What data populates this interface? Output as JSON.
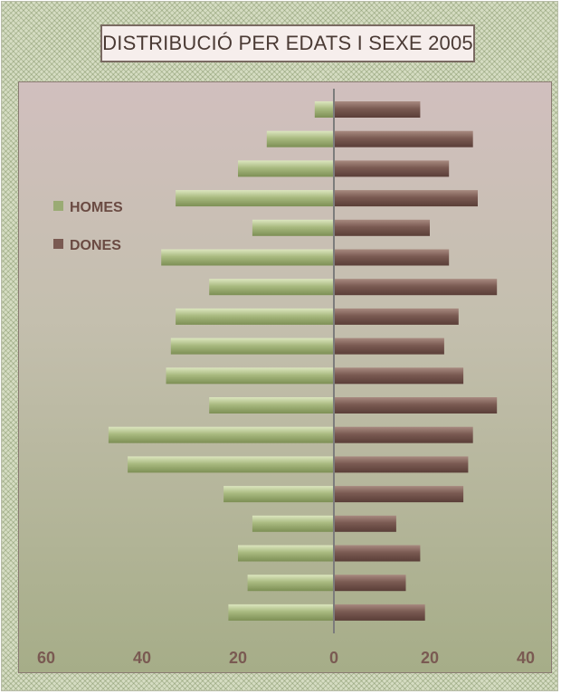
{
  "chart_data": {
    "type": "bar",
    "orientation": "horizontal",
    "title": "DISTRIBUCIÓ PER EDATS I SEXE 2005",
    "xlabel": "",
    "ylabel": "",
    "xlim": [
      -60,
      40
    ],
    "x_tick_values": [
      -60,
      -40,
      -20,
      0,
      20,
      40
    ],
    "x_tick_labels": [
      "60",
      "40",
      "20",
      "0",
      "20",
      "40"
    ],
    "categories": [
      "",
      "",
      "",
      "",
      "",
      "",
      "",
      "",
      "",
      "",
      "",
      "",
      "",
      "",
      "",
      "",
      "",
      ""
    ],
    "series": [
      {
        "name": "HOMES",
        "color": "#9aab74",
        "values": [
          -4,
          -14,
          -20,
          -33,
          -17,
          -36,
          -26,
          -33,
          -34,
          -35,
          -26,
          -47,
          -43,
          -23,
          -17,
          -20,
          -18,
          -22
        ]
      },
      {
        "name": "DONES",
        "color": "#7a5a52",
        "values": [
          18,
          29,
          24,
          30,
          20,
          24,
          34,
          26,
          23,
          27,
          34,
          29,
          28,
          27,
          13,
          18,
          15,
          19
        ]
      }
    ],
    "legend": {
      "position": "left",
      "items": [
        {
          "label": "HOMES",
          "color": "#9aab74"
        },
        {
          "label": "DONES",
          "color": "#7a5a52"
        }
      ]
    },
    "grid": false,
    "colors": {
      "axis": "#7c7c7c",
      "tick_label": "#7a5a52",
      "legend_text": "#6a4a42"
    }
  }
}
